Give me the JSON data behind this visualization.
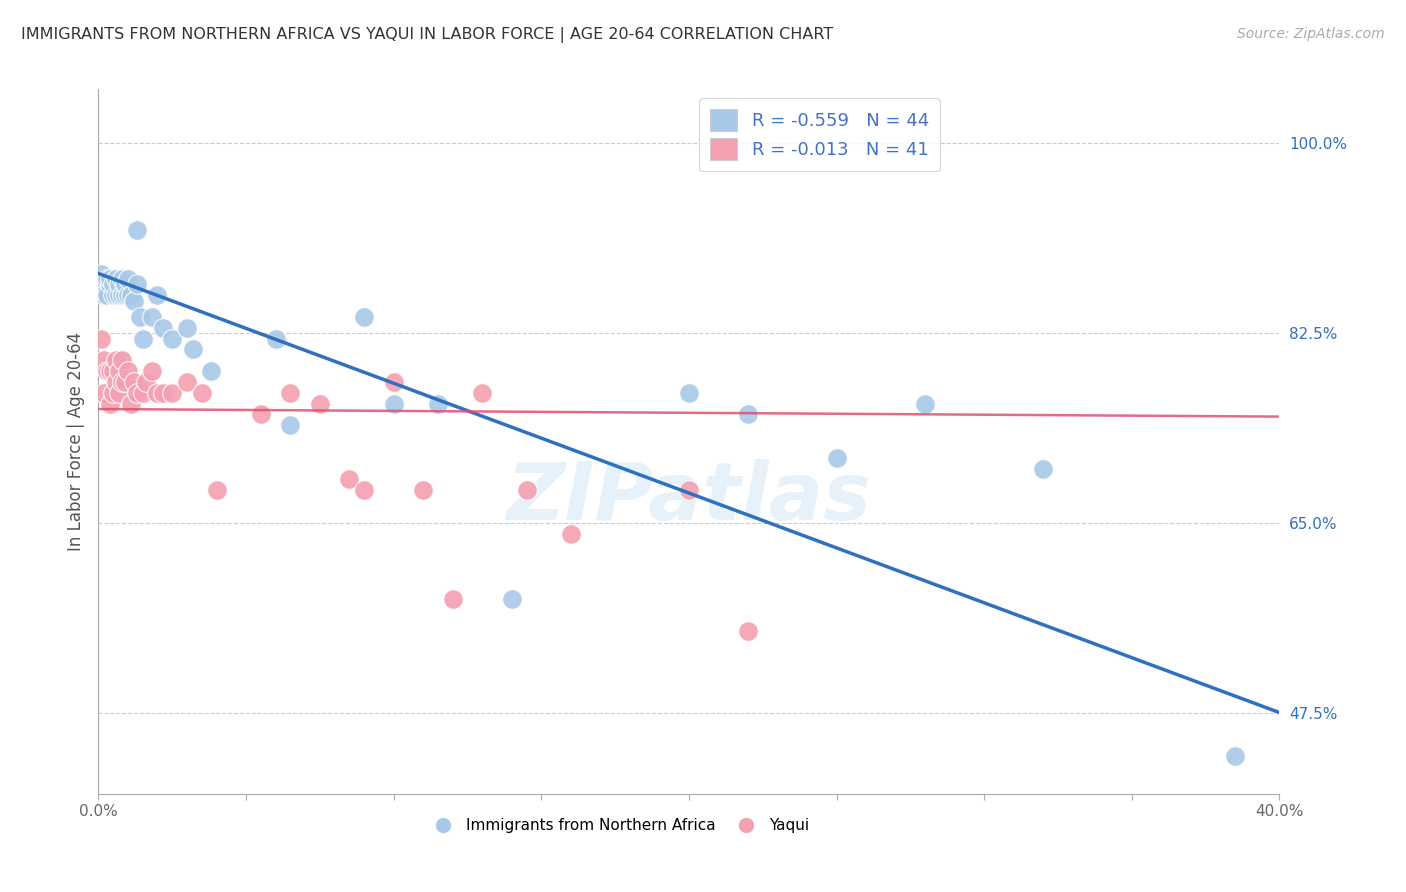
{
  "title": "IMMIGRANTS FROM NORTHERN AFRICA VS YAQUI IN LABOR FORCE | AGE 20-64 CORRELATION CHART",
  "source": "Source: ZipAtlas.com",
  "ylabel": "In Labor Force | Age 20-64",
  "xlim": [
    0.0,
    0.4
  ],
  "ylim": [
    0.4,
    1.05
  ],
  "yticks": [
    0.475,
    0.65,
    0.825,
    1.0
  ],
  "ytick_labels": [
    "47.5%",
    "65.0%",
    "82.5%",
    "100.0%"
  ],
  "xticks": [
    0.0,
    0.05,
    0.1,
    0.15,
    0.2,
    0.25,
    0.3,
    0.35,
    0.4
  ],
  "xtick_labels": [
    "0.0%",
    "",
    "",
    "",
    "",
    "",
    "",
    "",
    "40.0%"
  ],
  "blue_color": "#A8C8E8",
  "pink_color": "#F4A0B0",
  "blue_line_color": "#3070C0",
  "pink_line_color": "#E05070",
  "legend_blue_R": "R = -0.559",
  "legend_blue_N": "N = 44",
  "legend_pink_R": "R = -0.013",
  "legend_pink_N": "N = 41",
  "watermark": "ZIPatlas",
  "blue_scatter_x": [
    0.001,
    0.002,
    0.002,
    0.003,
    0.003,
    0.004,
    0.004,
    0.005,
    0.005,
    0.006,
    0.006,
    0.007,
    0.007,
    0.008,
    0.008,
    0.009,
    0.009,
    0.01,
    0.01,
    0.011,
    0.012,
    0.013,
    0.013,
    0.014,
    0.015,
    0.018,
    0.02,
    0.022,
    0.025,
    0.03,
    0.032,
    0.038,
    0.06,
    0.065,
    0.09,
    0.1,
    0.115,
    0.14,
    0.2,
    0.22,
    0.25,
    0.28,
    0.32,
    0.385
  ],
  "blue_scatter_y": [
    0.88,
    0.87,
    0.86,
    0.875,
    0.86,
    0.87,
    0.875,
    0.86,
    0.87,
    0.86,
    0.875,
    0.86,
    0.87,
    0.86,
    0.875,
    0.86,
    0.87,
    0.86,
    0.875,
    0.86,
    0.855,
    0.87,
    0.92,
    0.84,
    0.82,
    0.84,
    0.86,
    0.83,
    0.82,
    0.83,
    0.81,
    0.79,
    0.82,
    0.74,
    0.84,
    0.76,
    0.76,
    0.58,
    0.77,
    0.75,
    0.71,
    0.76,
    0.7,
    0.435
  ],
  "pink_scatter_x": [
    0.001,
    0.002,
    0.002,
    0.003,
    0.004,
    0.004,
    0.005,
    0.005,
    0.006,
    0.006,
    0.007,
    0.007,
    0.008,
    0.008,
    0.009,
    0.01,
    0.011,
    0.012,
    0.013,
    0.015,
    0.016,
    0.018,
    0.02,
    0.022,
    0.025,
    0.03,
    0.035,
    0.04,
    0.055,
    0.065,
    0.075,
    0.085,
    0.09,
    0.1,
    0.11,
    0.12,
    0.13,
    0.145,
    0.16,
    0.2,
    0.22
  ],
  "pink_scatter_y": [
    0.82,
    0.8,
    0.77,
    0.79,
    0.79,
    0.76,
    0.77,
    0.79,
    0.78,
    0.8,
    0.77,
    0.79,
    0.78,
    0.8,
    0.78,
    0.79,
    0.76,
    0.78,
    0.77,
    0.77,
    0.78,
    0.79,
    0.77,
    0.77,
    0.77,
    0.78,
    0.77,
    0.68,
    0.75,
    0.77,
    0.76,
    0.69,
    0.68,
    0.78,
    0.68,
    0.58,
    0.77,
    0.68,
    0.64,
    0.68,
    0.55
  ],
  "blue_trendline_x": [
    0.0,
    0.4
  ],
  "blue_trendline_y": [
    0.88,
    0.475
  ],
  "pink_trendline_x": [
    0.0,
    0.4
  ],
  "pink_trendline_y": [
    0.755,
    0.748
  ],
  "grid_color": "#CCCCCC",
  "background_color": "#FFFFFF"
}
